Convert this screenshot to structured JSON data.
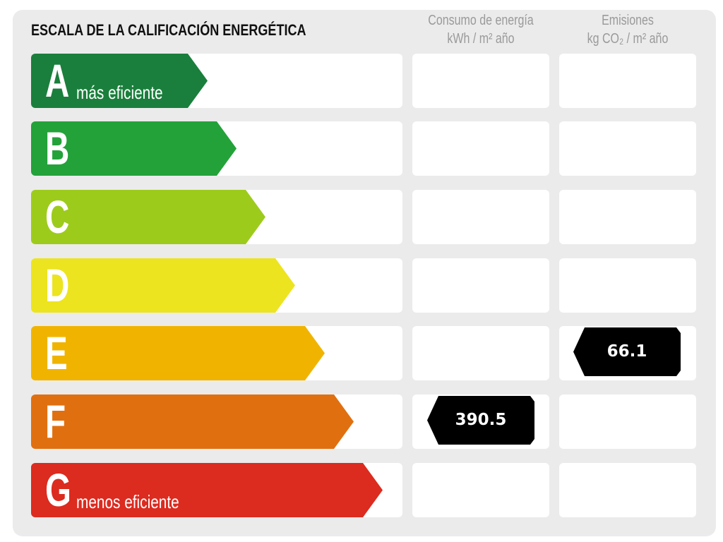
{
  "title": "ESCALA DE LA CALIFICACIÓN ENERGÉTICA",
  "columns": {
    "consumo": {
      "line1": "Consumo de energía",
      "line2": "kWh / m² año"
    },
    "emisiones": {
      "line1": "Emisiones",
      "line2": "kg CO₂ / m² año"
    }
  },
  "ratings": [
    {
      "letter": "A",
      "label": "más eficiente",
      "color": "#1a7f3c"
    },
    {
      "letter": "B",
      "label": "",
      "color": "#23a23a"
    },
    {
      "letter": "C",
      "label": "",
      "color": "#9dcb1c"
    },
    {
      "letter": "D",
      "label": "",
      "color": "#ece41f"
    },
    {
      "letter": "E",
      "label": "",
      "color": "#f0b400"
    },
    {
      "letter": "F",
      "label": "",
      "color": "#e0700f"
    },
    {
      "letter": "G",
      "label": "menos eficiente",
      "color": "#dc2b1f"
    }
  ],
  "results": {
    "consumo": {
      "value": "390.5",
      "rating": "F"
    },
    "emisiones": {
      "value": "66.1",
      "rating": "E"
    }
  }
}
